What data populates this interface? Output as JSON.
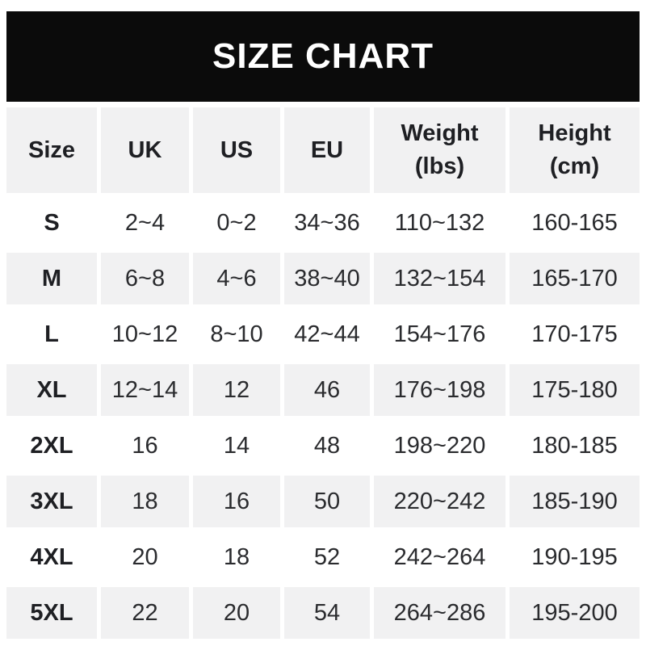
{
  "banner": {
    "title": "SIZE CHART"
  },
  "colors": {
    "banner_bg": "#0b0b0b",
    "banner_text": "#ffffff",
    "row_alt_bg": "#f1f1f2",
    "text": "#2a2b2e"
  },
  "table": {
    "headers": [
      {
        "line1": "Size"
      },
      {
        "line1": "UK"
      },
      {
        "line1": "US"
      },
      {
        "line1": "EU"
      },
      {
        "line1": "Weight",
        "line2": "(lbs)"
      },
      {
        "line1": "Height",
        "line2": "(cm)"
      }
    ],
    "rows": [
      {
        "size": "S",
        "uk": "2~4",
        "us": "0~2",
        "eu": "34~36",
        "weight": "110~132",
        "height": "160-165"
      },
      {
        "size": "M",
        "uk": "6~8",
        "us": "4~6",
        "eu": "38~40",
        "weight": "132~154",
        "height": "165-170"
      },
      {
        "size": "L",
        "uk": "10~12",
        "us": "8~10",
        "eu": "42~44",
        "weight": "154~176",
        "height": "170-175"
      },
      {
        "size": "XL",
        "uk": "12~14",
        "us": "12",
        "eu": "46",
        "weight": "176~198",
        "height": "175-180"
      },
      {
        "size": "2XL",
        "uk": "16",
        "us": "14",
        "eu": "48",
        "weight": "198~220",
        "height": "180-185"
      },
      {
        "size": "3XL",
        "uk": "18",
        "us": "16",
        "eu": "50",
        "weight": "220~242",
        "height": "185-190"
      },
      {
        "size": "4XL",
        "uk": "20",
        "us": "18",
        "eu": "52",
        "weight": "242~264",
        "height": "190-195"
      },
      {
        "size": "5XL",
        "uk": "22",
        "us": "20",
        "eu": "54",
        "weight": "264~286",
        "height": "195-200"
      }
    ]
  },
  "chart_data": {
    "type": "table",
    "title": "SIZE CHART",
    "columns": [
      "Size",
      "UK",
      "US",
      "EU",
      "Weight (lbs)",
      "Height (cm)"
    ],
    "rows": [
      [
        "S",
        "2~4",
        "0~2",
        "34~36",
        "110~132",
        "160-165"
      ],
      [
        "M",
        "6~8",
        "4~6",
        "38~40",
        "132~154",
        "165-170"
      ],
      [
        "L",
        "10~12",
        "8~10",
        "42~44",
        "154~176",
        "170-175"
      ],
      [
        "XL",
        "12~14",
        "12",
        "46",
        "176~198",
        "175-180"
      ],
      [
        "2XL",
        "16",
        "14",
        "48",
        "198~220",
        "180-185"
      ],
      [
        "3XL",
        "18",
        "16",
        "50",
        "220~242",
        "185-190"
      ],
      [
        "4XL",
        "20",
        "18",
        "52",
        "242~264",
        "190-195"
      ],
      [
        "5XL",
        "22",
        "20",
        "54",
        "264~286",
        "195-200"
      ]
    ],
    "layout": {
      "header_row_shaded": true,
      "alternating_rows": true,
      "grid_lines": "white-gaps"
    }
  }
}
